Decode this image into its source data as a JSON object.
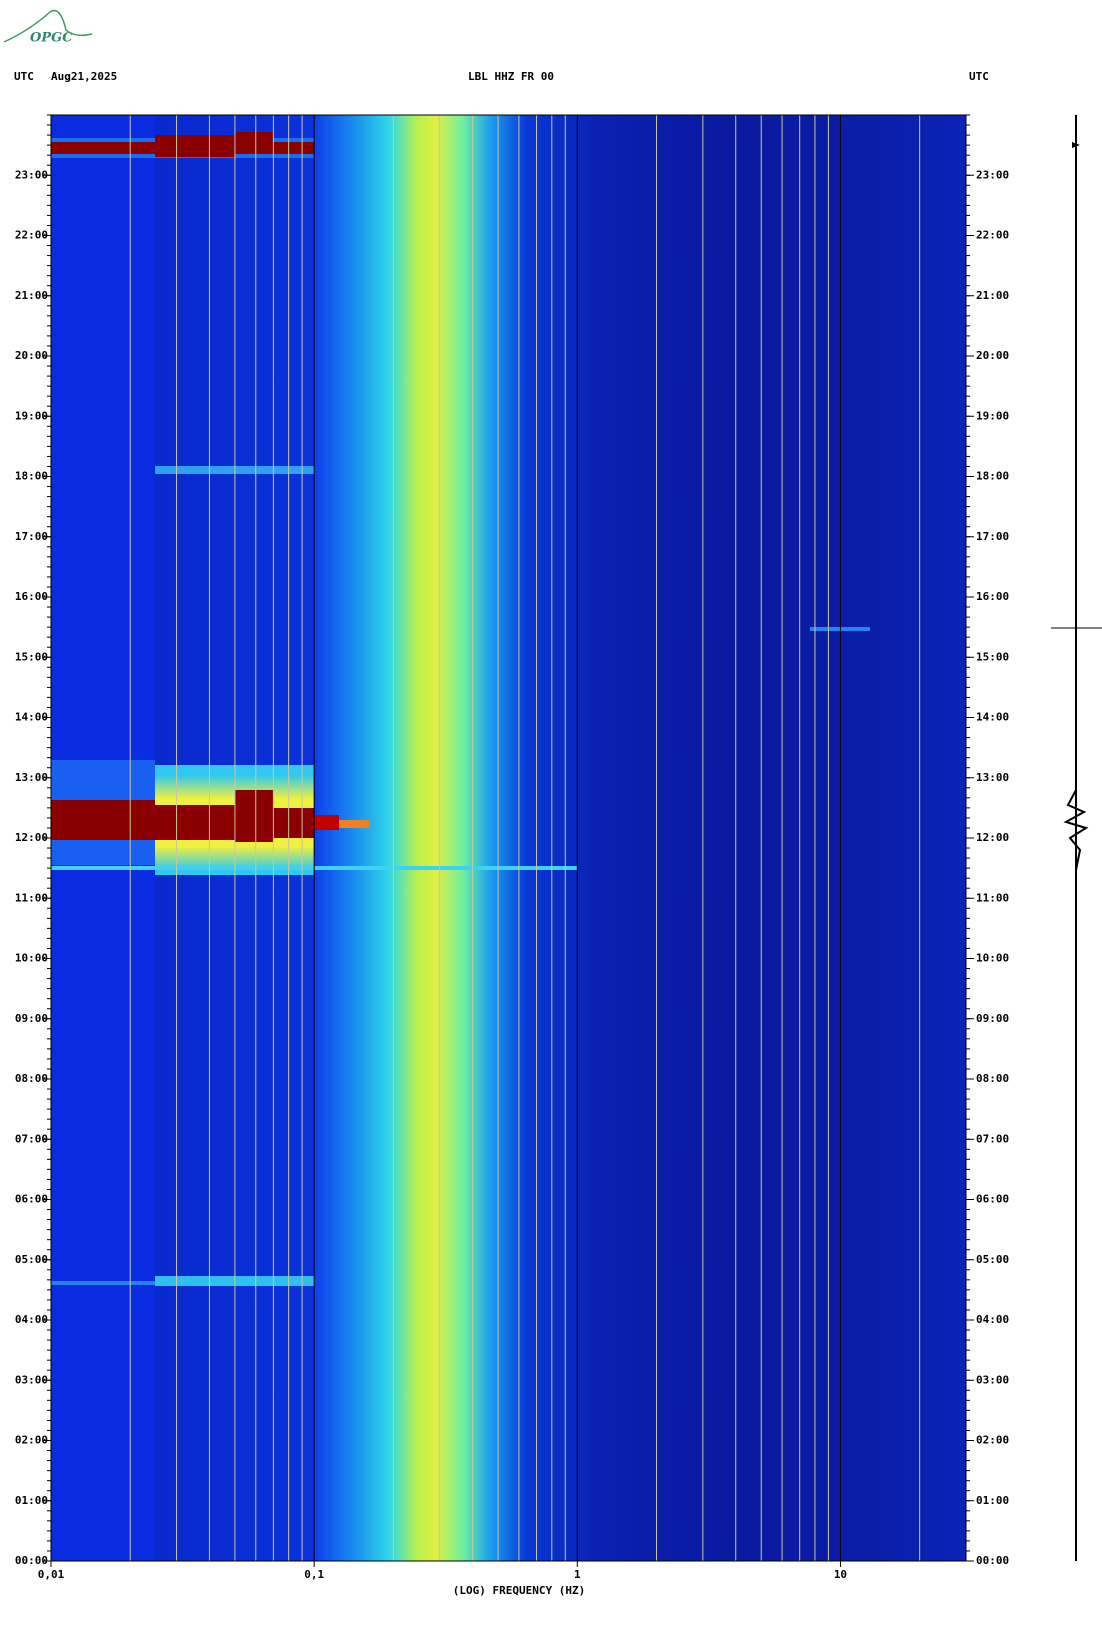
{
  "logo": "OPGC",
  "chart_data": {
    "type": "spectrogram",
    "time_zone_left": "UTC",
    "date": "Aug21,2025",
    "title": "LBL HHZ FR 00",
    "time_zone_right": "UTC",
    "x_label": "(LOG) FREQUENCY (HZ)",
    "xscale": "log",
    "xlim": [
      0.01,
      30
    ],
    "xticks": [
      {
        "value": 0.01,
        "label": "0,01"
      },
      {
        "value": 0.1,
        "label": "0,1"
      },
      1,
      10
    ],
    "ylim": [
      0,
      24
    ],
    "yticks": [
      {
        "value": 0,
        "label": "00:00"
      },
      {
        "value": 1,
        "label": "01:00"
      },
      {
        "value": 2,
        "label": "02:00"
      },
      {
        "value": 3,
        "label": "03:00"
      },
      {
        "value": 4,
        "label": "04:00"
      },
      {
        "value": 5,
        "label": "05:00"
      },
      {
        "value": 6,
        "label": "06:00"
      },
      {
        "value": 7,
        "label": "07:00"
      },
      {
        "value": 8,
        "label": "08:00"
      },
      {
        "value": 9,
        "label": "09:00"
      },
      {
        "value": 10,
        "label": "10:00"
      },
      {
        "value": 11,
        "label": "11:00"
      },
      {
        "value": 12,
        "label": "12:00"
      },
      {
        "value": 13,
        "label": "13:00"
      },
      {
        "value": 14,
        "label": "14:00"
      },
      {
        "value": 15,
        "label": "15:00"
      },
      {
        "value": 16,
        "label": "16:00"
      },
      {
        "value": 17,
        "label": "17:00"
      },
      {
        "value": 18,
        "label": "18:00"
      },
      {
        "value": 19,
        "label": "19:00"
      },
      {
        "value": 20,
        "label": "20:00"
      },
      {
        "value": 21,
        "label": "21:00"
      },
      {
        "value": 22,
        "label": "22:00"
      },
      {
        "value": 23,
        "label": "23:00"
      }
    ],
    "grid": true
  }
}
